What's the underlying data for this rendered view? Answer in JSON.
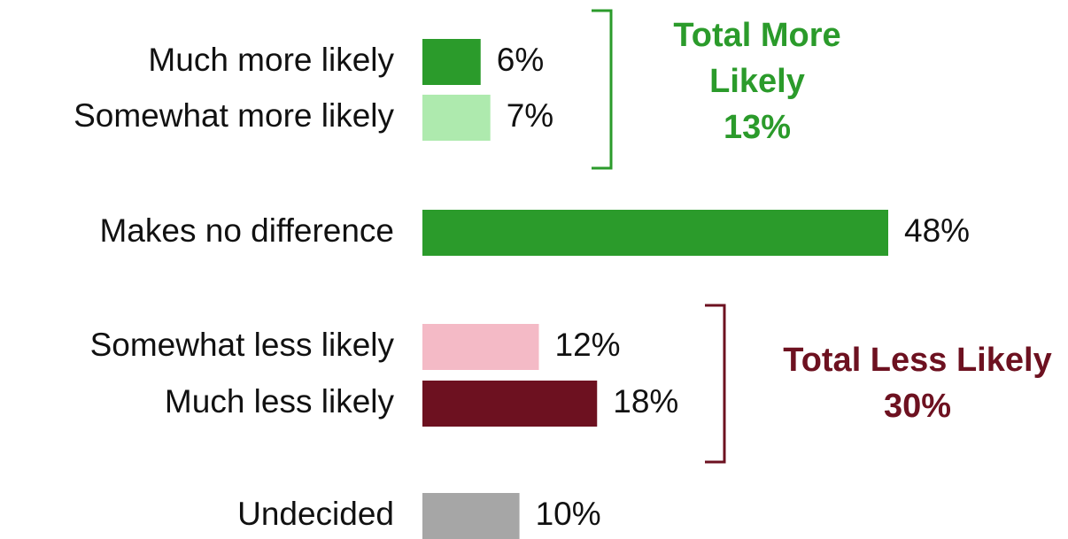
{
  "chart_data": {
    "type": "bar",
    "orientation": "horizontal",
    "categories": [
      "Much more likely",
      "Somewhat more likely",
      "Makes no difference",
      "Somewhat less likely",
      "Much less likely",
      "Undecided"
    ],
    "values": [
      6,
      7,
      48,
      12,
      18,
      10
    ],
    "value_labels": [
      "6%",
      "7%",
      "48%",
      "12%",
      "18%",
      "10%"
    ],
    "colors": [
      "#2b9b2b",
      "#aeeaae",
      "#2b9b2b",
      "#f4bac6",
      "#6d1120",
      "#a6a6a6"
    ],
    "annotations": [
      {
        "text": "Total More Likely",
        "value": 13,
        "value_label": "13%",
        "color": "#2b9b2b"
      },
      {
        "text": "Total Less Likely",
        "value": 30,
        "value_label": "30%",
        "color": "#6d1120"
      }
    ]
  }
}
